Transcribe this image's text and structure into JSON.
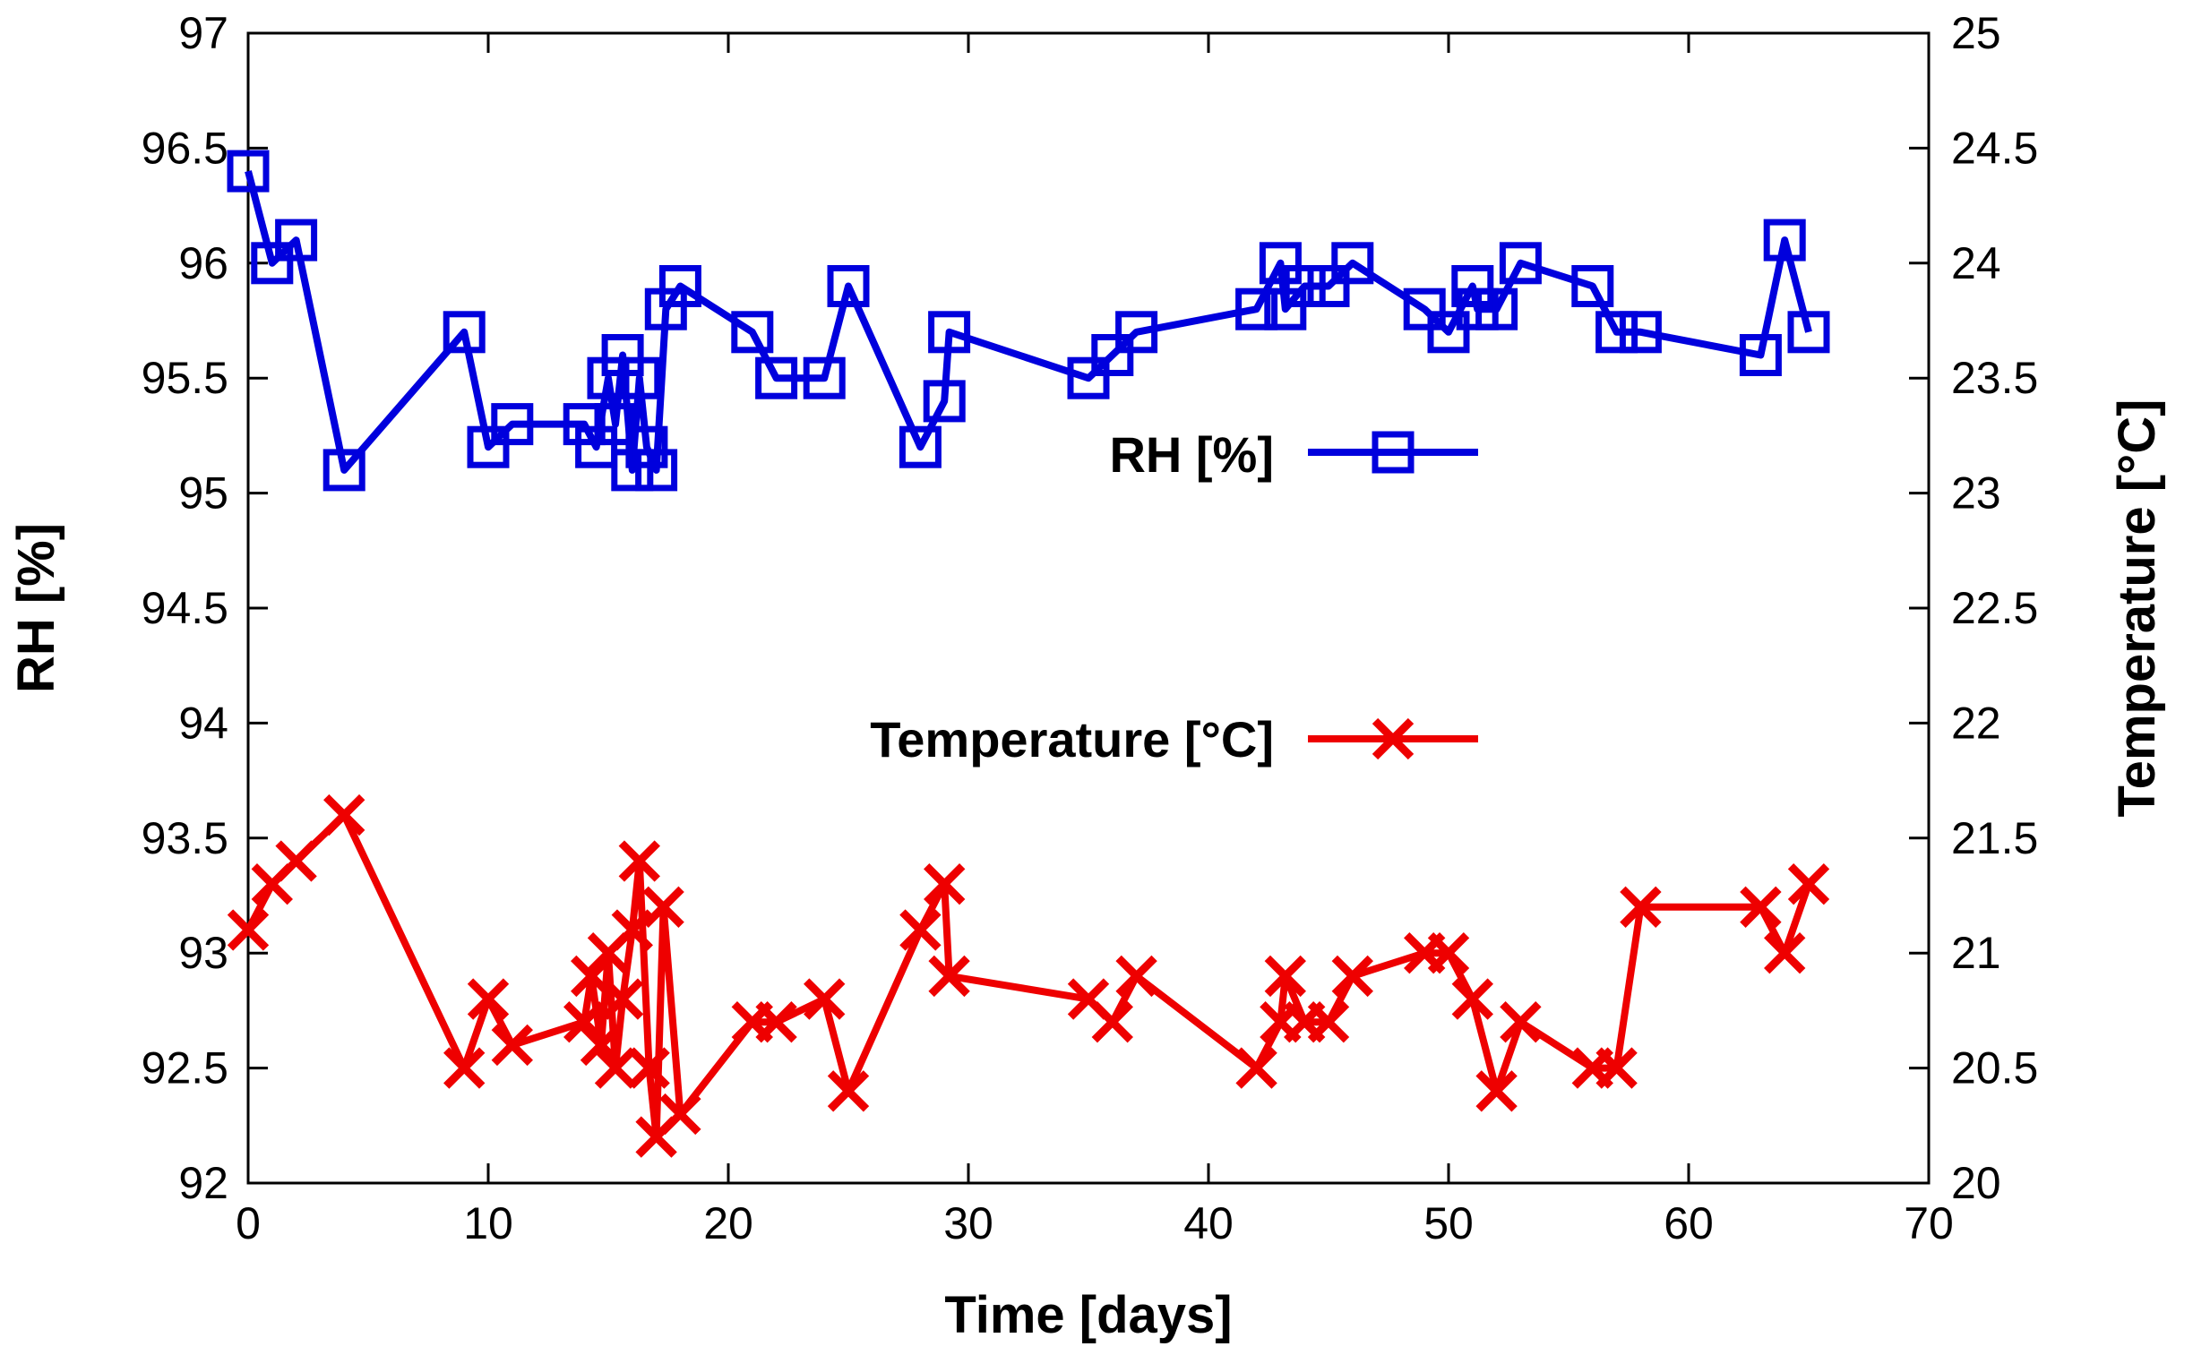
{
  "chart_data": {
    "type": "line",
    "title": "",
    "xlabel": "Time [days]",
    "ylabel": "RH [%]",
    "y2label": "Temperature [°C]",
    "xlim": [
      0,
      70
    ],
    "ylim": [
      92,
      97
    ],
    "y2lim": [
      20,
      25
    ],
    "xticks": [
      "0",
      "10",
      "20",
      "30",
      "40",
      "50",
      "60",
      "70"
    ],
    "yticks": [
      "92",
      "92.5",
      "93",
      "93.5",
      "94",
      "94.5",
      "95",
      "95.5",
      "96",
      "96.5",
      "97"
    ],
    "y2ticks": [
      "20",
      "20.5",
      "21",
      "21.5",
      "22",
      "22.5",
      "23",
      "23.5",
      "24",
      "24.5",
      "25"
    ],
    "legend_position": "center-right",
    "grid": false,
    "series": [
      {
        "name": "RH [%]",
        "axis": "left",
        "color": "#0000dd",
        "marker": "square",
        "x": [
          0,
          1,
          2,
          4,
          9,
          10,
          11,
          14,
          14.5,
          15,
          15.3,
          15.6,
          16,
          16.3,
          16.6,
          17,
          17.4,
          18,
          21,
          22,
          24,
          25,
          28,
          29,
          29.2,
          35,
          36,
          37,
          42,
          43,
          43.2,
          44,
          45,
          46,
          49,
          50,
          51,
          51.2,
          52,
          53,
          56,
          57,
          58,
          63,
          64,
          65
        ],
        "values": [
          96.4,
          96.0,
          96.1,
          95.1,
          95.7,
          95.2,
          95.3,
          95.3,
          95.2,
          95.5,
          95.3,
          95.6,
          95.1,
          95.5,
          95.2,
          95.1,
          95.8,
          95.9,
          95.7,
          95.5,
          95.5,
          95.9,
          95.2,
          95.4,
          95.7,
          95.5,
          95.6,
          95.7,
          95.8,
          96.0,
          95.8,
          95.9,
          95.9,
          96.0,
          95.8,
          95.7,
          95.9,
          95.8,
          95.8,
          96.0,
          95.9,
          95.7,
          95.7,
          95.6,
          96.1,
          95.7
        ]
      },
      {
        "name": "Temperature [°C]",
        "axis": "right",
        "color": "#ee0000",
        "marker": "x",
        "x": [
          0,
          1,
          2,
          4,
          9,
          10,
          11,
          14,
          14.3,
          14.7,
          15,
          15.3,
          15.6,
          16,
          16.3,
          16.7,
          17,
          17.3,
          18,
          21,
          22,
          24,
          25,
          28,
          29,
          29.2,
          35,
          36,
          37,
          42,
          43,
          43.2,
          44,
          45,
          46,
          49,
          50,
          51,
          52,
          53,
          56,
          57,
          58,
          63,
          64,
          65
        ],
        "values": [
          21.1,
          21.3,
          21.4,
          21.6,
          20.5,
          20.8,
          20.6,
          20.7,
          20.9,
          20.6,
          21.0,
          20.5,
          20.8,
          21.1,
          21.4,
          20.5,
          20.2,
          21.2,
          20.3,
          20.7,
          20.7,
          20.8,
          20.4,
          21.1,
          21.3,
          20.9,
          20.8,
          20.7,
          20.9,
          20.5,
          20.7,
          20.9,
          20.7,
          20.7,
          20.9,
          21.0,
          21.0,
          20.8,
          20.4,
          20.7,
          20.5,
          20.5,
          21.2,
          21.2,
          21.0,
          21.3
        ]
      }
    ]
  }
}
